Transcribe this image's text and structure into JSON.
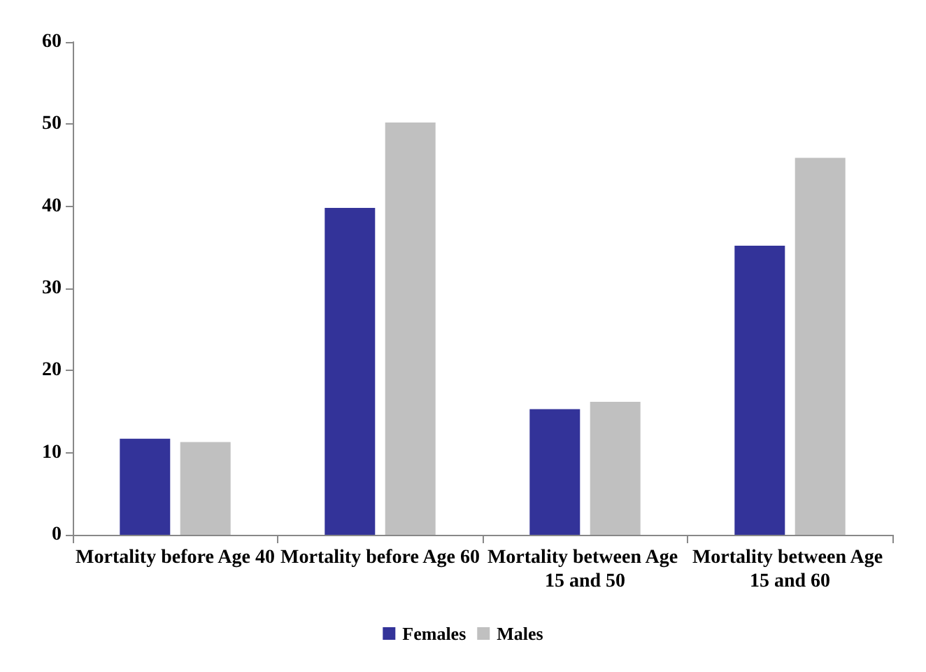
{
  "chart_data": {
    "type": "bar",
    "categories": [
      "Mortality before Age 40",
      "Mortality before Age 60",
      "Mortality between Age 15 and 50",
      "Mortality between Age 15 and 60"
    ],
    "series": [
      {
        "name": "Females",
        "color": "#333399",
        "values": [
          11.7,
          39.8,
          15.3,
          35.2
        ]
      },
      {
        "name": "Males",
        "color": "#c0c0c0",
        "values": [
          11.3,
          50.2,
          16.2,
          45.9
        ]
      }
    ],
    "ylim": [
      0,
      60
    ],
    "yticks": [
      0,
      10,
      20,
      30,
      40,
      50,
      60
    ],
    "grid": false,
    "legend": "bottom"
  }
}
